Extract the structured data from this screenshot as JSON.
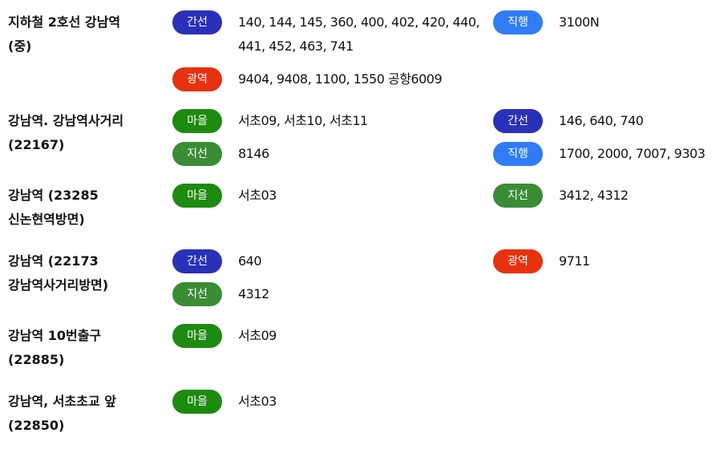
{
  "stops": [
    {
      "name_lines": [
        "지하철 2호선 강남역",
        "(중)"
      ],
      "left": [
        {
          "type": "간선",
          "color": "#2a30b8",
          "routes": "140, 144, 145, 360, 400, 402, 420, 440, 441, 452, 463, 741"
        },
        {
          "type": "광역",
          "color": "#e6320e",
          "routes": "9404, 9408, 1100, 1550 공항6009"
        }
      ],
      "right": [
        {
          "type": "직행",
          "color": "#2f7cf6",
          "routes": "3100N"
        }
      ]
    },
    {
      "name_lines": [
        "강남역. 강남역사거리",
        "(22167)"
      ],
      "left": [
        {
          "type": "마을",
          "color": "#1d8a10",
          "routes": "서초09, 서초10, 서초11"
        },
        {
          "type": "지선",
          "color": "#3a8c35",
          "routes": "8146"
        }
      ],
      "right": [
        {
          "type": "간선",
          "color": "#2a30b8",
          "routes": "146, 640, 740"
        },
        {
          "type": "직행",
          "color": "#2f7cf6",
          "routes": "1700, 2000, 7007, 9303"
        }
      ]
    },
    {
      "name_lines": [
        "강남역 (23285",
        "신논현역방면)"
      ],
      "left": [
        {
          "type": "마을",
          "color": "#1d8a10",
          "routes": "서초03"
        }
      ],
      "right": [
        {
          "type": "지선",
          "color": "#3a8c35",
          "routes": "3412, 4312"
        }
      ]
    },
    {
      "name_lines": [
        "강남역 (22173",
        "강남역사거리방면)"
      ],
      "left": [
        {
          "type": "간선",
          "color": "#2a30b8",
          "routes": "640"
        },
        {
          "type": "지선",
          "color": "#3a8c35",
          "routes": "4312"
        }
      ],
      "right": [
        {
          "type": "광역",
          "color": "#e6320e",
          "routes": "9711"
        }
      ]
    },
    {
      "name_lines": [
        "강남역 10번출구",
        "(22885)"
      ],
      "left": [
        {
          "type": "마을",
          "color": "#1d8a10",
          "routes": "서초09"
        }
      ],
      "right": []
    },
    {
      "name_lines": [
        "강남역, 서초초교 앞",
        "(22850)"
      ],
      "left": [
        {
          "type": "마을",
          "color": "#1d8a10",
          "routes": "서초03"
        }
      ],
      "right": []
    }
  ]
}
